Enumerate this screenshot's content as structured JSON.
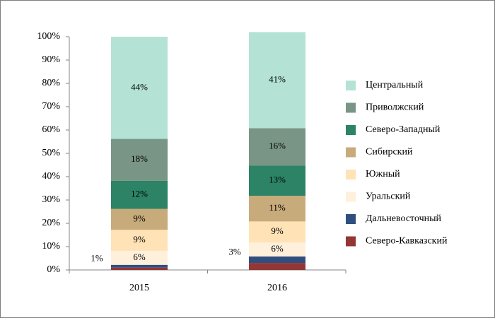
{
  "chart_data": {
    "type": "bar",
    "stacked": true,
    "categories": [
      "2015",
      "2016"
    ],
    "ylim": [
      0,
      100
    ],
    "yticks": [
      "0%",
      "10%",
      "20%",
      "30%",
      "40%",
      "50%",
      "60%",
      "70%",
      "80%",
      "90%",
      "100%"
    ],
    "legend_position": "right",
    "series": [
      {
        "name": "Северо-Кавказский",
        "values": [
          1,
          3
        ],
        "color": "#943634",
        "labels": [
          "",
          ""
        ]
      },
      {
        "name": "Дальневосточный",
        "values": [
          1.2,
          2.8
        ],
        "color": "#2f4f80",
        "labels": [
          "1%",
          "3%"
        ]
      },
      {
        "name": "Уральский",
        "values": [
          6,
          6
        ],
        "color": "#fff0dc",
        "labels": [
          "6%",
          "6%"
        ]
      },
      {
        "name": "Южный",
        "values": [
          9,
          9
        ],
        "color": "#ffe2b6",
        "labels": [
          "9%",
          "9%"
        ]
      },
      {
        "name": "Сибирский",
        "values": [
          9,
          11
        ],
        "color": "#c8ab7a",
        "labels": [
          "9%",
          "11%"
        ]
      },
      {
        "name": "Северо-Западный",
        "values": [
          12,
          13
        ],
        "color": "#2c8366",
        "labels": [
          "12%",
          "13%"
        ]
      },
      {
        "name": "Приволжский",
        "values": [
          18,
          16
        ],
        "color": "#799586",
        "labels": [
          "18%",
          "16%"
        ]
      },
      {
        "name": "Центральный",
        "values": [
          43.8,
          41.2
        ],
        "color": "#b4e3d6",
        "labels": [
          "44%",
          "41%"
        ]
      }
    ],
    "legend_order": [
      "Центральный",
      "Приволжский",
      "Северо-Западный",
      "Сибирский",
      "Южный",
      "Уральский",
      "Дальневосточный",
      "Северо-Кавказский"
    ]
  }
}
